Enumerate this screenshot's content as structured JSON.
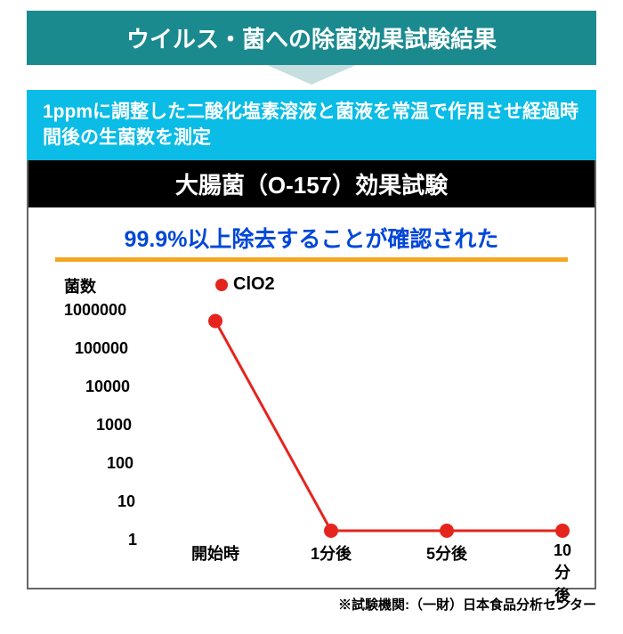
{
  "header": {
    "title": "ウイルス・菌への除菌効果試験結果"
  },
  "sub_banner": {
    "text": "1ppmに調整した二酸化塩素溶液と菌液を常温で作用させ経過時間後の生菌数を測定"
  },
  "chart": {
    "type": "line",
    "title": "大腸菌（O-157）効果試験",
    "highlight": "99.9%以上除去することが確認された",
    "y_axis_title": "菌数",
    "legend_label": "ClO2",
    "scale": "log",
    "y_ticks": [
      "1000000",
      "100000",
      "10000",
      "1000",
      "100",
      "10",
      "1"
    ],
    "x_labels": [
      "開始時",
      "1分後",
      "5分後",
      "10分後"
    ],
    "values": [
      300000,
      1,
      1,
      1
    ],
    "colors": {
      "header_bg": "#1a8a8f",
      "arrow": "#c5dedf",
      "sub_bg": "#0abce6",
      "title_bg": "#000000",
      "highlight_text": "#0047d9",
      "highlight_underline": "#f5a623",
      "line": "#e6241e",
      "marker": "#e6241e",
      "border": "#666666",
      "background": "#ffffff"
    },
    "line_width": 3,
    "marker_radius": 8,
    "label_fontsize": 18,
    "title_fontsize": 26
  },
  "footnote": {
    "text": "※試験機関:（一財）日本食品分析センター"
  }
}
